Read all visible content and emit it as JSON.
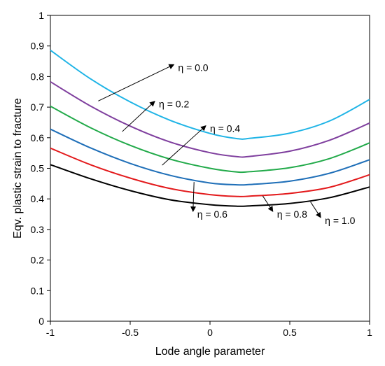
{
  "chart_data": {
    "type": "line",
    "title": "",
    "xlabel": "Lode angle parameter",
    "ylabel": "Eqv. plastic strain to fracture",
    "xlim": [
      -1,
      1
    ],
    "ylim": [
      0,
      1
    ],
    "x_ticks": [
      "-1",
      "-0.5",
      "0",
      "0.5",
      "1"
    ],
    "y_ticks": [
      "0",
      "0.1",
      "0.2",
      "0.3",
      "0.4",
      "0.5",
      "0.6",
      "0.7",
      "0.8",
      "0.9",
      "1"
    ],
    "grid": false,
    "legend": "none",
    "x": [
      -1.0,
      -0.75,
      -0.5,
      -0.25,
      0.0,
      0.17,
      0.25,
      0.5,
      0.75,
      1.0
    ],
    "series": [
      {
        "name": "η = 0.0",
        "color": "#1fb4e6",
        "values": [
          0.886,
          0.793,
          0.717,
          0.657,
          0.614,
          0.597,
          0.598,
          0.615,
          0.655,
          0.725
        ],
        "label_at": [
          -0.2,
          0.83
        ],
        "arrow_to": [
          -0.7,
          0.72
        ]
      },
      {
        "name": "η = 0.2",
        "color": "#7f3f9e",
        "values": [
          0.783,
          0.704,
          0.638,
          0.586,
          0.551,
          0.538,
          0.539,
          0.556,
          0.592,
          0.648
        ],
        "label_at": [
          -0.32,
          0.71
        ],
        "arrow_to": [
          -0.55,
          0.62
        ]
      },
      {
        "name": "η = 0.4",
        "color": "#22aa4a",
        "values": [
          0.703,
          0.633,
          0.575,
          0.53,
          0.5,
          0.488,
          0.489,
          0.502,
          0.532,
          0.583
        ],
        "label_at": [
          0.0,
          0.63
        ],
        "arrow_to": [
          -0.3,
          0.51
        ]
      },
      {
        "name": "η = 0.6",
        "color": "#1f6fb8",
        "values": [
          0.628,
          0.567,
          0.516,
          0.477,
          0.452,
          0.446,
          0.447,
          0.458,
          0.484,
          0.528
        ],
        "label_at": [
          -0.08,
          0.35
        ],
        "arrow_to": [
          -0.1,
          0.455
        ]
      },
      {
        "name": "η = 0.8",
        "color": "#e31a1c",
        "values": [
          0.566,
          0.512,
          0.468,
          0.434,
          0.414,
          0.408,
          0.409,
          0.418,
          0.438,
          0.479
        ],
        "label_at": [
          0.42,
          0.35
        ],
        "arrow_to": [
          0.33,
          0.41
        ]
      },
      {
        "name": "η = 1.0",
        "color": "#000000",
        "values": [
          0.512,
          0.466,
          0.427,
          0.397,
          0.381,
          0.376,
          0.377,
          0.385,
          0.404,
          0.439
        ],
        "label_at": [
          0.72,
          0.33
        ],
        "arrow_to": [
          0.63,
          0.39
        ]
      }
    ]
  }
}
